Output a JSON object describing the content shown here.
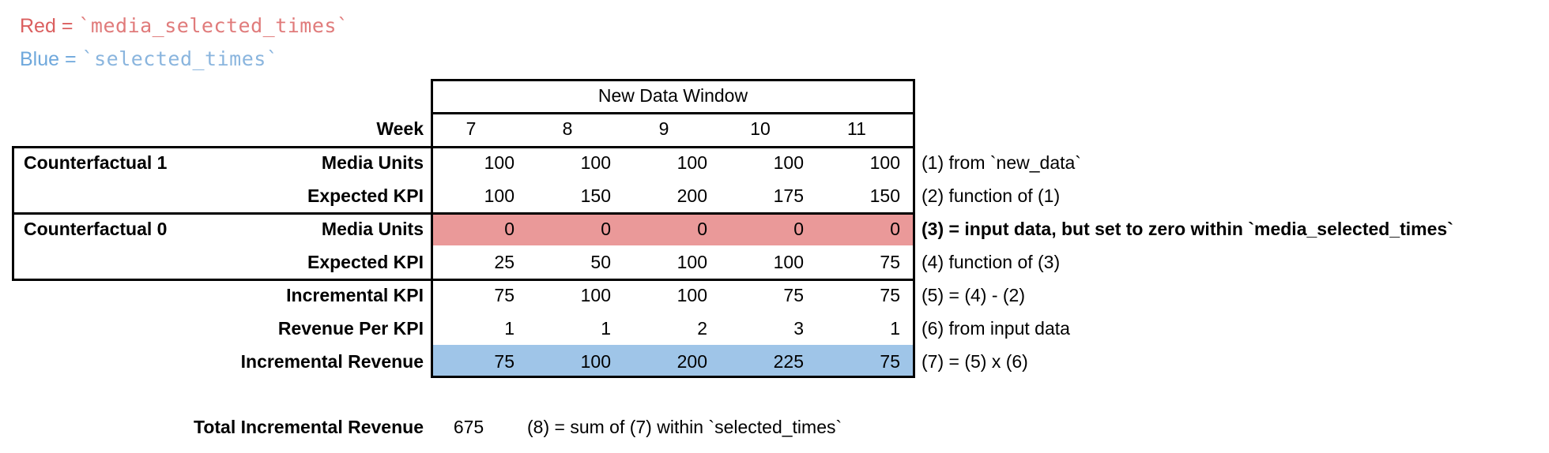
{
  "legend": {
    "red_label": "Red",
    "blue_label": "Blue",
    "eq": " = ",
    "red_code": "`media_selected_times`",
    "blue_code": "`selected_times`"
  },
  "table": {
    "window_header": "New Data Window",
    "week_label": "Week",
    "weeks": [
      "7",
      "8",
      "9",
      "10",
      "11"
    ],
    "group1_label": "Counterfactual 1",
    "group2_label": "Counterfactual 0",
    "rows": [
      {
        "label": "Media Units",
        "values": [
          100,
          100,
          100,
          100,
          100
        ],
        "highlight": null,
        "annotation": "(1) from `new_data`"
      },
      {
        "label": "Expected KPI",
        "values": [
          100,
          150,
          200,
          175,
          150
        ],
        "highlight": null,
        "annotation": "(2) function of (1)"
      },
      {
        "label": "Media Units",
        "values": [
          0,
          0,
          0,
          0,
          0
        ],
        "highlight": "red",
        "annotation": "(3) = input data, but set to zero within `media_selected_times`"
      },
      {
        "label": "Expected KPI",
        "values": [
          25,
          50,
          100,
          100,
          75
        ],
        "highlight": null,
        "annotation": "(4) function of (3)"
      },
      {
        "label": "Incremental KPI",
        "values": [
          75,
          100,
          100,
          75,
          75
        ],
        "highlight": null,
        "annotation": "(5) = (4) - (2)"
      },
      {
        "label": "Revenue Per KPI",
        "values": [
          1,
          1,
          2,
          3,
          1
        ],
        "highlight": null,
        "annotation": "(6) from input data"
      },
      {
        "label": "Incremental Revenue",
        "values": [
          75,
          100,
          200,
          225,
          75
        ],
        "highlight": "blue",
        "annotation": "(7) = (5) x (6)"
      }
    ]
  },
  "total": {
    "label": "Total Incremental Revenue",
    "value": "675",
    "annotation": "(8) = sum of (7) within `selected_times`"
  },
  "colors": {
    "red_fill": "#EA9999",
    "blue_fill": "#9FC5E8",
    "red_text": "#DB5F5F",
    "red_code_text": "#E07B7B",
    "blue_text": "#6FA8DC",
    "blue_code_text": "#8AB5DE"
  }
}
